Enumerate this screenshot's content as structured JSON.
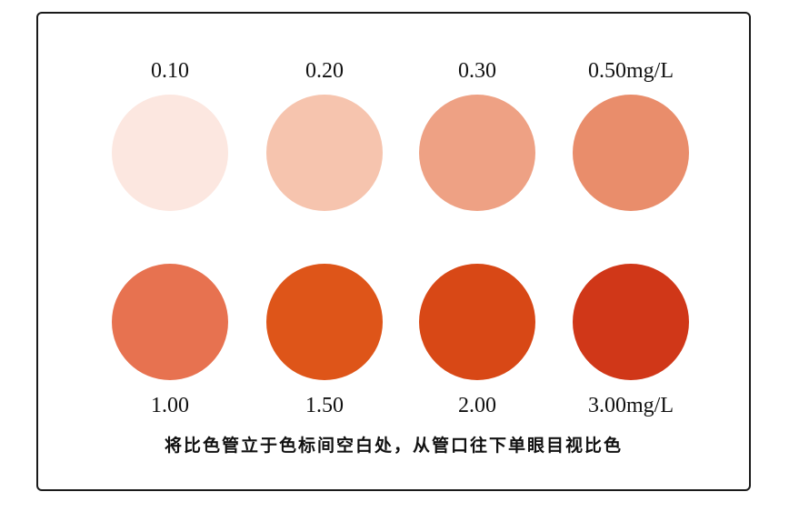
{
  "top_row": [
    {
      "label": "0.10",
      "color": "#FCE7E0"
    },
    {
      "label": "0.20",
      "color": "#F6C4AE"
    },
    {
      "label": "0.30",
      "color": "#EEA184"
    },
    {
      "label": "0.50mg/L",
      "color": "#E98D6B"
    }
  ],
  "bottom_row": [
    {
      "label": "1.00",
      "color": "#E77250"
    },
    {
      "label": "1.50",
      "color": "#DE5519"
    },
    {
      "label": "2.00",
      "color": "#D84816"
    },
    {
      "label": "3.00mg/L",
      "color": "#D03718"
    }
  ],
  "instruction": "将比色管立于色标间空白处，从管口往下单眼目视比色"
}
